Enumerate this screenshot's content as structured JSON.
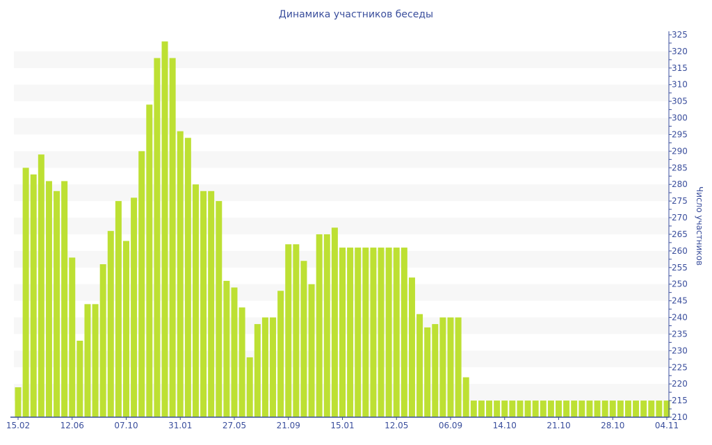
{
  "chart_data": {
    "type": "bar",
    "title": "Динамика участников беседы",
    "ylabel": "Число участников",
    "xlabel": "",
    "ylim": [
      210,
      325
    ],
    "y_ticks": [
      210,
      215,
      220,
      225,
      230,
      235,
      240,
      245,
      250,
      255,
      260,
      265,
      270,
      275,
      280,
      285,
      290,
      295,
      300,
      305,
      310,
      315,
      320,
      325
    ],
    "y_axis_position": "right",
    "grid": "alternating horizontal bands",
    "x_tick_labels": [
      {
        "bar": 1,
        "label": "15.02"
      },
      {
        "bar": 8,
        "label": "12.06"
      },
      {
        "bar": 15,
        "label": "07.10"
      },
      {
        "bar": 22,
        "label": "31.01"
      },
      {
        "bar": 29,
        "label": "27.05"
      },
      {
        "bar": 36,
        "label": "21.09"
      },
      {
        "bar": 43,
        "label": "15.01"
      },
      {
        "bar": 50,
        "label": "12.05"
      },
      {
        "bar": 57,
        "label": "06.09"
      },
      {
        "bar": 64,
        "label": "14.10"
      },
      {
        "bar": 71,
        "label": "21.10"
      },
      {
        "bar": 78,
        "label": "28.10"
      },
      {
        "bar": 85,
        "label": "04.11"
      }
    ],
    "values": [
      219,
      285,
      283,
      289,
      281,
      278,
      281,
      258,
      233,
      244,
      244,
      256,
      266,
      275,
      263,
      276,
      290,
      304,
      318,
      323,
      318,
      296,
      294,
      280,
      278,
      278,
      275,
      251,
      249,
      243,
      228,
      238,
      240,
      240,
      248,
      262,
      262,
      257,
      250,
      265,
      265,
      267,
      261,
      261,
      261,
      261,
      261,
      261,
      261,
      261,
      261,
      252,
      241,
      237,
      238,
      240,
      240,
      240,
      222,
      215,
      215,
      215,
      215,
      215,
      215,
      215,
      215,
      215,
      215,
      215,
      215,
      215,
      215,
      215,
      215,
      215,
      215,
      215,
      215,
      215,
      215,
      215,
      215,
      215,
      215
    ],
    "colors": {
      "bar": "#bde033",
      "text": "#3a4e9c",
      "band": "#f7f7f7",
      "axis": "#3a4e9c"
    }
  }
}
